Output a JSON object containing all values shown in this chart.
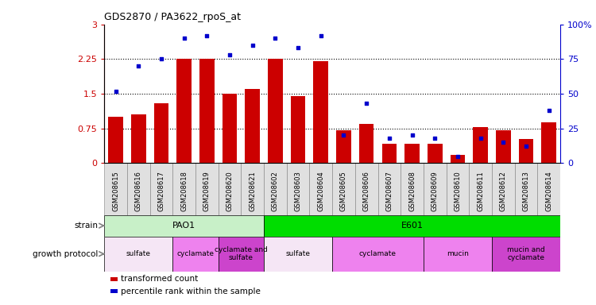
{
  "title": "GDS2870 / PA3622_rpoS_at",
  "samples": [
    "GSM208615",
    "GSM208616",
    "GSM208617",
    "GSM208618",
    "GSM208619",
    "GSM208620",
    "GSM208621",
    "GSM208602",
    "GSM208603",
    "GSM208604",
    "GSM208605",
    "GSM208606",
    "GSM208607",
    "GSM208608",
    "GSM208609",
    "GSM208610",
    "GSM208611",
    "GSM208612",
    "GSM208613",
    "GSM208614"
  ],
  "transformed_count": [
    1.0,
    1.05,
    1.3,
    2.25,
    2.25,
    1.5,
    1.6,
    2.25,
    1.45,
    2.2,
    0.72,
    0.85,
    0.42,
    0.42,
    0.42,
    0.18,
    0.78,
    0.72,
    0.52,
    0.88
  ],
  "percentile_rank": [
    52,
    70,
    75,
    90,
    92,
    78,
    85,
    90,
    83,
    92,
    20,
    43,
    18,
    20,
    18,
    5,
    18,
    15,
    12,
    38
  ],
  "bar_color": "#cc0000",
  "dot_color": "#0000cc",
  "ylim_left": [
    0,
    3
  ],
  "ylim_right": [
    0,
    100
  ],
  "yticks_left": [
    0,
    0.75,
    1.5,
    2.25,
    3.0
  ],
  "yticks_right": [
    0,
    25,
    50,
    75,
    100
  ],
  "ytick_labels_left": [
    "0",
    "0.75",
    "1.5",
    "2.25",
    "3"
  ],
  "ytick_labels_right": [
    "0",
    "25",
    "50",
    "75",
    "100%"
  ],
  "hlines": [
    0.75,
    1.5,
    2.25
  ],
  "strain_row": [
    {
      "label": "PAO1",
      "start": 0,
      "end": 7,
      "color": "#c8f0c8"
    },
    {
      "label": "E601",
      "start": 7,
      "end": 20,
      "color": "#00dd00"
    }
  ],
  "protocol_row": [
    {
      "label": "sulfate",
      "start": 0,
      "end": 3,
      "color": "#f5e6f5"
    },
    {
      "label": "cyclamate",
      "start": 3,
      "end": 5,
      "color": "#ee82ee"
    },
    {
      "label": "cyclamate and\nsulfate",
      "start": 5,
      "end": 7,
      "color": "#cc44cc"
    },
    {
      "label": "sulfate",
      "start": 7,
      "end": 10,
      "color": "#f5e6f5"
    },
    {
      "label": "cyclamate",
      "start": 10,
      "end": 14,
      "color": "#ee82ee"
    },
    {
      "label": "mucin",
      "start": 14,
      "end": 17,
      "color": "#ee82ee"
    },
    {
      "label": "mucin and\ncyclamate",
      "start": 17,
      "end": 20,
      "color": "#cc44cc"
    }
  ],
  "legend_items": [
    {
      "label": "transformed count",
      "color": "#cc0000"
    },
    {
      "label": "percentile rank within the sample",
      "color": "#0000cc"
    }
  ],
  "background_color": "#ffffff",
  "tick_bg_color": "#e0e0e0",
  "axis_color_left": "#cc0000",
  "axis_color_right": "#0000cc"
}
